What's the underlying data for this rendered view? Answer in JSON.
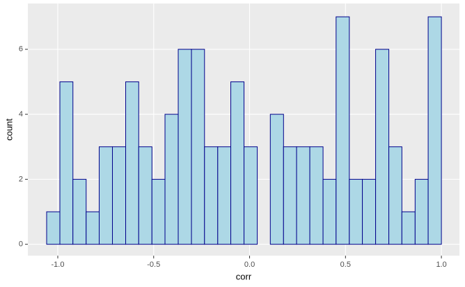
{
  "chart_data": {
    "type": "histogram",
    "x_label": "corr",
    "y_label": "count",
    "bins": [
      -1.058,
      -0.989,
      -0.921,
      -0.852,
      -0.784,
      -0.715,
      -0.646,
      -0.578,
      -0.509,
      -0.441,
      -0.372,
      -0.303,
      -0.235,
      -0.166,
      -0.098,
      -0.029,
      0.04,
      0.108,
      0.177,
      0.245,
      0.314,
      0.383,
      0.451,
      0.52,
      0.588,
      0.657,
      0.726,
      0.794,
      0.863,
      0.931,
      1.0
    ],
    "values": [
      1,
      5,
      2,
      1,
      3,
      3,
      5,
      3,
      2,
      4,
      6,
      6,
      3,
      3,
      5,
      3,
      0,
      4,
      3,
      3,
      3,
      2,
      7,
      2,
      2,
      6,
      3,
      1,
      2,
      7
    ],
    "color": "#add8e6",
    "edge_color": "#00008b",
    "xlim": [
      -1.156,
      1.094
    ],
    "ylim": [
      -0.35,
      7.41
    ],
    "xticks": [
      {
        "value": -1,
        "label": "-1.0"
      },
      -0.5,
      {
        "value": 0,
        "label": "0.0"
      },
      0.5,
      {
        "value": 1,
        "label": "1.0"
      }
    ],
    "yticks": [
      0,
      2,
      4,
      6
    ],
    "grid": true
  }
}
